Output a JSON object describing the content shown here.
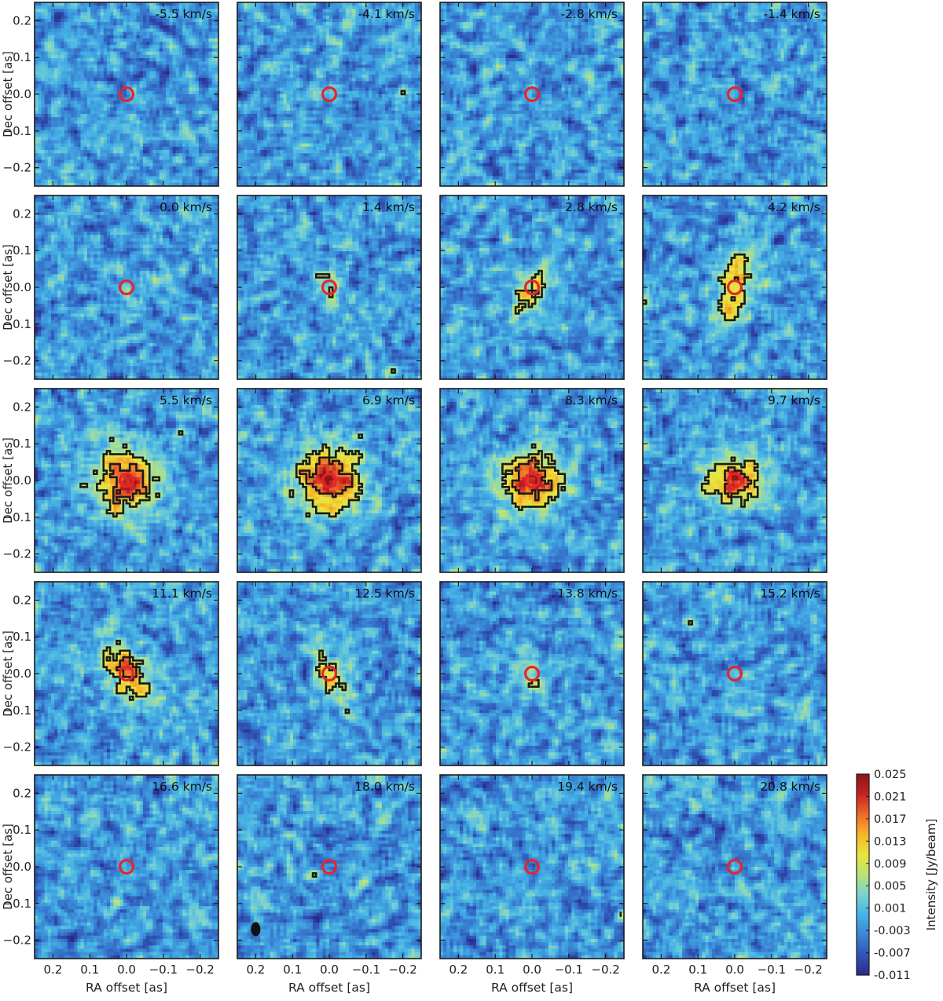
{
  "chart_data": {
    "type": "heatmap",
    "layout": {
      "rows": 5,
      "cols": 4
    },
    "xlabel": "RA offset [as]",
    "ylabel": "Dec offset [as]",
    "xlim": [
      0.25,
      -0.25
    ],
    "ylim": [
      -0.25,
      0.25
    ],
    "xticks": [
      0.2,
      0.1,
      0.0,
      -0.1,
      -0.2
    ],
    "xtick_labels": [
      "0.2",
      "0.1",
      "0.0",
      "−0.1",
      "−0.2"
    ],
    "yticks": [
      0.2,
      0.1,
      0.0,
      -0.1,
      -0.2
    ],
    "ytick_labels": [
      "0.2",
      "0.1",
      "0.0",
      "−0.1",
      "−0.2"
    ],
    "panels": [
      {
        "label": "-5.5 km/s",
        "peak": 0.0,
        "sx": 0.0,
        "sy": 0.0,
        "ang": 0.0
      },
      {
        "label": "-4.1 km/s",
        "peak": 0.0,
        "sx": 0.0,
        "sy": 0.0,
        "ang": 0.0
      },
      {
        "label": "-2.8 km/s",
        "peak": 0.0,
        "sx": 0.0,
        "sy": 0.0,
        "ang": 0.0
      },
      {
        "label": "-1.4 km/s",
        "peak": 0.0,
        "sx": 0.0,
        "sy": 0.0,
        "ang": 0.0
      },
      {
        "label": "0.0 km/s",
        "peak": 0.002,
        "sx": 0.03,
        "sy": 0.05,
        "ang": 0.0
      },
      {
        "label": "1.4 km/s",
        "peak": 0.007,
        "sx": 0.03,
        "sy": 0.04,
        "ang": 0.0
      },
      {
        "label": "2.8 km/s",
        "peak": 0.012,
        "sx": 0.03,
        "sy": 0.06,
        "ang": 0.4
      },
      {
        "label": "4.2 km/s",
        "peak": 0.016,
        "sx": 0.035,
        "sy": 0.07,
        "ang": 0.3
      },
      {
        "label": "5.5 km/s",
        "peak": 0.024,
        "sx": 0.055,
        "sy": 0.065,
        "ang": 0.0
      },
      {
        "label": "6.9 km/s",
        "peak": 0.025,
        "sx": 0.06,
        "sy": 0.06,
        "ang": 0.0
      },
      {
        "label": "8.3 km/s",
        "peak": 0.023,
        "sx": 0.06,
        "sy": 0.055,
        "ang": 0.0
      },
      {
        "label": "9.7 km/s",
        "peak": 0.021,
        "sx": 0.055,
        "sy": 0.045,
        "ang": 0.0
      },
      {
        "label": "11.1 km/s",
        "peak": 0.018,
        "sx": 0.035,
        "sy": 0.07,
        "ang": -0.6
      },
      {
        "label": "12.5 km/s",
        "peak": 0.013,
        "sx": 0.025,
        "sy": 0.07,
        "ang": -0.4
      },
      {
        "label": "13.8 km/s",
        "peak": 0.009,
        "sx": 0.02,
        "sy": 0.05,
        "ang": -0.3
      },
      {
        "label": "15.2 km/s",
        "peak": 0.003,
        "sx": 0.02,
        "sy": 0.03,
        "ang": 0.0
      },
      {
        "label": "16.6 km/s",
        "peak": 0.0,
        "sx": 0.0,
        "sy": 0.0,
        "ang": 0.0
      },
      {
        "label": "18.0 km/s",
        "peak": 0.0,
        "sx": 0.0,
        "sy": 0.0,
        "ang": 0.0
      },
      {
        "label": "19.4 km/s",
        "peak": 0.0,
        "sx": 0.0,
        "sy": 0.0,
        "ang": 0.0
      },
      {
        "label": "20.8 km/s",
        "peak": 0.0,
        "sx": 0.0,
        "sy": 0.0,
        "ang": 0.0
      }
    ],
    "source_marker": {
      "x": 0.0,
      "y": 0.0,
      "radius": 0.018,
      "color": "#e8232a"
    },
    "colorbar": {
      "label": "Intensity [Jy/beam]",
      "vmin": -0.011,
      "vmax": 0.025,
      "ticks": [
        "0.025",
        "0.021",
        "0.017",
        "0.013",
        "0.009",
        "0.005",
        "0.001",
        "-0.003",
        "-0.007",
        "-0.011"
      ],
      "colormap": [
        "#2b2a8a",
        "#2f55b5",
        "#3a85d4",
        "#45b3e6",
        "#7cd2cf",
        "#b9e27a",
        "#ebe53a",
        "#f6b52b",
        "#ee6a2a",
        "#c72125",
        "#8c1515"
      ]
    },
    "contour_color": "#1b1b1b",
    "beam": {
      "panel": 17,
      "x": 0.2,
      "y": -0.17,
      "color": "#111111"
    }
  }
}
